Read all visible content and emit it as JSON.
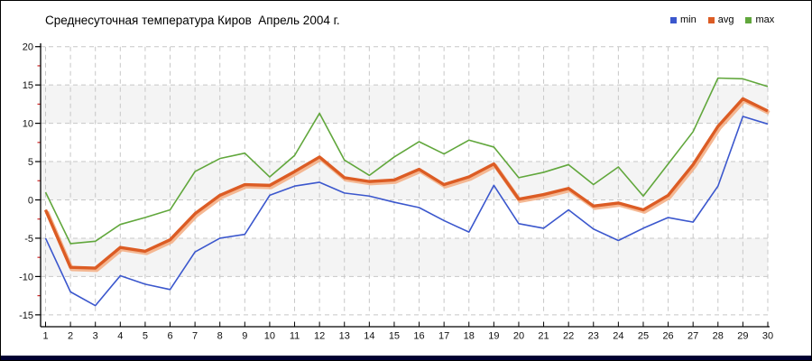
{
  "chart_data": {
    "type": "line",
    "title": "Среднесуточная температура Киров  Апрель 2004 г.",
    "xlabel": "",
    "ylabel": "",
    "x": [
      1,
      2,
      3,
      4,
      5,
      6,
      7,
      8,
      9,
      10,
      11,
      12,
      13,
      14,
      15,
      16,
      17,
      18,
      19,
      20,
      21,
      22,
      23,
      24,
      25,
      26,
      27,
      28,
      29,
      30
    ],
    "ylim": [
      -15,
      20
    ],
    "y_ticks": [
      20,
      15,
      10,
      5,
      0,
      -5,
      -10,
      -15
    ],
    "y_tick_step": 5,
    "y_minor_step": 2.5,
    "grid": "dashed",
    "legend_position": "top-right",
    "series": [
      {
        "name": "min",
        "color": "#3b57cd",
        "width": 1.6,
        "values": [
          -5.0,
          -12.0,
          -13.8,
          -9.9,
          -11.0,
          -11.7,
          -6.8,
          -5.0,
          -4.5,
          0.6,
          1.8,
          2.3,
          0.9,
          0.5,
          -0.3,
          -1.0,
          -2.7,
          -4.2,
          1.9,
          -3.1,
          -3.7,
          -1.3,
          -3.8,
          -5.3,
          -3.7,
          -2.3,
          -2.9,
          1.8,
          10.9,
          9.9
        ]
      },
      {
        "name": "avg",
        "color": "#dc5c24",
        "halo": "#f3ac80",
        "width": 3.4,
        "values": [
          -1.3,
          -8.8,
          -8.9,
          -6.2,
          -6.7,
          -5.2,
          -1.8,
          0.6,
          2.0,
          1.9,
          3.7,
          5.6,
          2.9,
          2.4,
          2.6,
          4.0,
          2.0,
          3.0,
          4.7,
          0.1,
          0.7,
          1.5,
          -0.8,
          -0.4,
          -1.3,
          0.6,
          4.6,
          9.6,
          13.2,
          11.6
        ]
      },
      {
        "name": "max",
        "color": "#61a73c",
        "width": 1.6,
        "values": [
          1.0,
          -5.7,
          -5.4,
          -3.2,
          -2.3,
          -1.3,
          3.7,
          5.4,
          6.1,
          3.0,
          5.8,
          11.3,
          5.2,
          3.2,
          5.6,
          7.6,
          6.0,
          7.8,
          6.9,
          2.9,
          3.6,
          4.6,
          2.0,
          4.3,
          0.5,
          4.7,
          8.9,
          15.9,
          15.8,
          14.8
        ]
      }
    ],
    "band_ranges": [
      [
        10,
        15
      ],
      [
        0,
        5
      ],
      [
        -10,
        -5
      ]
    ],
    "band_color": "#f4f4f4",
    "grid_color": "#c7c7c7",
    "axis_color": "#000000",
    "minor_tick_color": "#cc2222",
    "tick_label_color": "#111111"
  },
  "footer": {
    "bar_color": "#000033"
  }
}
